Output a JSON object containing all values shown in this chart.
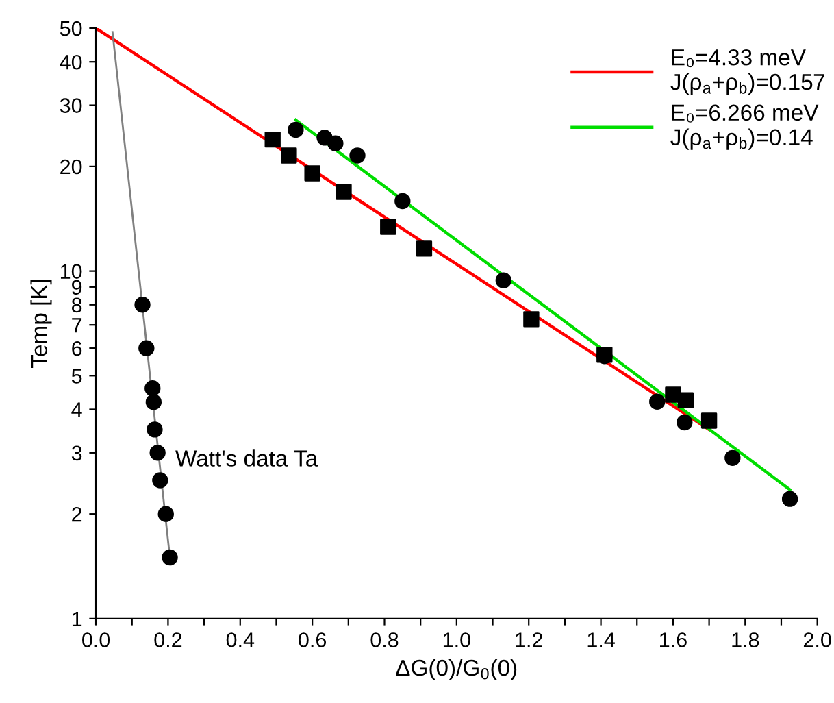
{
  "chart_data": {
    "type": "scatter",
    "xlabel": "ΔG(0)/G$_{0}$(0)",
    "ylabel": "Temp [K]",
    "log": "y",
    "xlim": [
      0,
      2.0
    ],
    "ylim": [
      1,
      50
    ],
    "xticks": [
      {
        "value": 0,
        "label": "0.0"
      },
      {
        "value": 0.1,
        "label": null
      },
      {
        "value": 0.2,
        "label": "0.2"
      },
      {
        "value": 0.3,
        "label": null
      },
      {
        "value": 0.4,
        "label": "0.4"
      },
      {
        "value": 0.5,
        "label": null
      },
      {
        "value": 0.6,
        "label": "0.6"
      },
      {
        "value": 0.7,
        "label": null
      },
      {
        "value": 0.8,
        "label": "0.8"
      },
      {
        "value": 0.9,
        "label": null
      },
      {
        "value": 1.0,
        "label": "1.0"
      },
      {
        "value": 1.1,
        "label": null
      },
      {
        "value": 1.2,
        "label": "1.2"
      },
      {
        "value": 1.3,
        "label": null
      },
      {
        "value": 1.4,
        "label": "1.4"
      },
      {
        "value": 1.5,
        "label": null
      },
      {
        "value": 1.6,
        "label": "1.6"
      },
      {
        "value": 1.7,
        "label": null
      },
      {
        "value": 1.8,
        "label": "1.8"
      },
      {
        "value": 1.9,
        "label": null
      },
      {
        "value": 2.0,
        "label": "2.0"
      }
    ],
    "yticks": [
      1,
      2,
      3,
      4,
      5,
      6,
      7,
      8,
      9,
      10,
      20,
      30,
      40,
      50
    ],
    "grid": false,
    "legend": "top right",
    "annotations": [
      "Watt's data Ta"
    ],
    "series": [
      {
        "name": "E₀=4.33 meV\nJ(ρ$_{a}$+ρ$_{b}$)=0.157",
        "type": "line",
        "color": "#ff0000",
        "marker": "none",
        "x": [
          0,
          1.7
        ],
        "values": [
          50,
          3.5
        ]
      },
      {
        "name": "E₀=6.266 meV\nJ(ρ$_{a}$+ρ$_{b}$)=0.14",
        "type": "line",
        "color": "#00dd00",
        "marker": "none",
        "x": [
          0.554,
          1.924
        ],
        "values": [
          27.2,
          2.35
        ]
      },
      {
        "type": "line",
        "color": "#808080",
        "marker": "none",
        "x": [
          0.046,
          0.205
        ],
        "values": [
          48.7,
          1.5
        ]
      },
      {
        "type": "scatter",
        "color": "#000000",
        "marker": "square",
        "x": [
          0.49,
          0.535,
          0.6,
          0.687,
          0.81,
          0.91,
          1.207,
          1.41,
          1.6,
          1.635,
          1.7
        ],
        "values": [
          23.9,
          21.5,
          19.1,
          16.9,
          13.4,
          11.6,
          7.27,
          5.74,
          4.41,
          4.25,
          3.71
        ]
      },
      {
        "type": "scatter",
        "color": "#000000",
        "marker": "circle",
        "x": [
          0.554,
          0.634,
          0.664,
          0.725,
          0.85,
          1.13,
          1.41,
          1.556,
          1.632,
          1.765,
          1.924
        ],
        "values": [
          25.5,
          24.2,
          23.3,
          21.5,
          15.9,
          9.4,
          5.69,
          4.21,
          3.67,
          2.9,
          2.21
        ]
      },
      {
        "color": "#000000",
        "marker": "circle",
        "x": [
          0.129,
          0.14,
          0.157,
          0.16,
          0.163,
          0.171,
          0.178,
          0.194,
          0.205
        ],
        "values": [
          8,
          6,
          4.6,
          4.2,
          3.5,
          3.0,
          2.5,
          2.0,
          1.5
        ]
      }
    ]
  }
}
